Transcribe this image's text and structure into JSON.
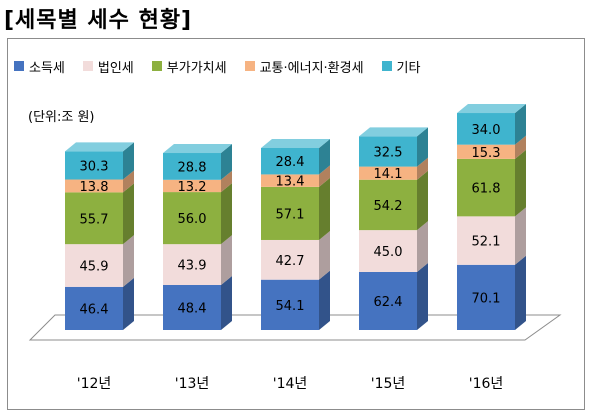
{
  "title": "[세목별 세수 현황]",
  "unit_label": "(단위:조 원)",
  "colors": {
    "소득세": "#4573c0",
    "법인세": "#f2dcdb",
    "부가가치세": "#8db040",
    "교통·에너지·환경세": "#f6b382",
    "기타": "#3fb4ce"
  },
  "chart_data": {
    "type": "bar",
    "stacked": true,
    "categories": [
      "'12년",
      "'13년",
      "'14년",
      "'15년",
      "'16년"
    ],
    "series": [
      {
        "name": "소득세",
        "values": [
          46.4,
          48.4,
          54.1,
          62.4,
          70.1
        ]
      },
      {
        "name": "법인세",
        "values": [
          45.9,
          43.9,
          42.7,
          45.0,
          52.1
        ]
      },
      {
        "name": "부가가치세",
        "values": [
          55.7,
          56.0,
          57.1,
          54.2,
          61.8
        ]
      },
      {
        "name": "교통·에너지·환경세",
        "values": [
          13.8,
          13.2,
          13.4,
          14.1,
          15.3
        ]
      },
      {
        "name": "기타",
        "values": [
          30.3,
          28.8,
          28.4,
          32.5,
          34.0
        ]
      }
    ],
    "legend_position": "top",
    "grid": false
  }
}
